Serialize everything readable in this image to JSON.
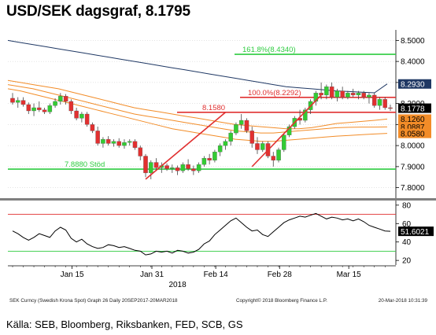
{
  "title": "USD/SEK dagsgraf, 8.1795",
  "source": "Källa: SEB, Bloomberg, Riksbanken, FED, SCB, GS",
  "footer": {
    "left": "SEK Curncy (Swedish Krona Spot) Graph 26  Daily 20SEP2017-20MAR2018",
    "center": "Copyright© 2018 Bloomberg Finance L.P.",
    "right": "20-Mar-2018 10:31:39"
  },
  "chart_data": [
    {
      "type": "candlestick",
      "panel": "price",
      "ylim": [
        7.75,
        8.55
      ],
      "yticks": [
        "7.8000",
        "7.9000",
        "8.0000",
        "8.1000",
        "8.2000",
        "8.3000",
        "8.4000",
        "8.5000"
      ],
      "xticks": [
        "Jan 15",
        "Jan 31",
        "Feb 14",
        "Feb 28",
        "Mar 15"
      ],
      "xaxis_year": "2018",
      "candles": [
        [
          8.225,
          8.25,
          8.195,
          8.205
        ],
        [
          8.205,
          8.23,
          8.18,
          8.215
        ],
        [
          8.215,
          8.23,
          8.185,
          8.195
        ],
        [
          8.195,
          8.205,
          8.15,
          8.165
        ],
        [
          8.165,
          8.2,
          8.14,
          8.18
        ],
        [
          8.18,
          8.21,
          8.16,
          8.17
        ],
        [
          8.17,
          8.18,
          8.15,
          8.16
        ],
        [
          8.16,
          8.2,
          8.15,
          8.19
        ],
        [
          8.19,
          8.225,
          8.18,
          8.21
        ],
        [
          8.21,
          8.25,
          8.195,
          8.235
        ],
        [
          8.235,
          8.245,
          8.195,
          8.21
        ],
        [
          8.21,
          8.22,
          8.15,
          8.165
        ],
        [
          8.165,
          8.18,
          8.12,
          8.13
        ],
        [
          8.13,
          8.16,
          8.11,
          8.15
        ],
        [
          8.15,
          8.16,
          8.09,
          8.1
        ],
        [
          8.1,
          8.11,
          8.06,
          8.07
        ],
        [
          8.07,
          8.09,
          8.0,
          8.01
        ],
        [
          8.01,
          8.04,
          7.99,
          8.03
        ],
        [
          8.03,
          8.045,
          8.0,
          8.01
        ],
        [
          8.01,
          8.03,
          7.995,
          8.02
        ],
        [
          8.02,
          8.035,
          7.99,
          8.0
        ],
        [
          8.0,
          8.03,
          7.985,
          8.015
        ],
        [
          8.015,
          8.03,
          8.0,
          8.02
        ],
        [
          8.02,
          8.03,
          7.98,
          7.99
        ],
        [
          7.99,
          8.0,
          7.93,
          7.95
        ],
        [
          7.95,
          7.96,
          7.85,
          7.87
        ],
        [
          7.87,
          7.93,
          7.84,
          7.92
        ],
        [
          7.92,
          7.94,
          7.88,
          7.895
        ],
        [
          7.895,
          7.92,
          7.87,
          7.905
        ],
        [
          7.905,
          7.915,
          7.88,
          7.89
        ],
        [
          7.89,
          7.91,
          7.87,
          7.895
        ],
        [
          7.895,
          7.905,
          7.86,
          7.88
        ],
        [
          7.88,
          7.92,
          7.87,
          7.91
        ],
        [
          7.91,
          7.935,
          7.88,
          7.89
        ],
        [
          7.89,
          7.905,
          7.86,
          7.88
        ],
        [
          7.88,
          7.92,
          7.87,
          7.91
        ],
        [
          7.91,
          7.95,
          7.9,
          7.94
        ],
        [
          7.94,
          7.96,
          7.91,
          7.93
        ],
        [
          7.93,
          7.98,
          7.92,
          7.97
        ],
        [
          7.97,
          8.01,
          7.95,
          8.0
        ],
        [
          8.0,
          8.03,
          7.98,
          8.02
        ],
        [
          8.02,
          8.07,
          8.0,
          8.06
        ],
        [
          8.06,
          8.11,
          8.05,
          8.1
        ],
        [
          8.1,
          8.15,
          8.08,
          8.12
        ],
        [
          8.12,
          8.13,
          8.06,
          8.07
        ],
        [
          8.07,
          8.09,
          7.99,
          8.01
        ],
        [
          8.01,
          8.04,
          7.96,
          7.98
        ],
        [
          7.98,
          8.02,
          7.97,
          8.01
        ],
        [
          8.01,
          8.02,
          7.94,
          7.95
        ],
        [
          7.95,
          7.97,
          7.9,
          7.93
        ],
        [
          7.93,
          7.99,
          7.92,
          7.98
        ],
        [
          7.98,
          8.06,
          7.97,
          8.05
        ],
        [
          8.05,
          8.1,
          8.04,
          8.09
        ],
        [
          8.09,
          8.14,
          8.08,
          8.13
        ],
        [
          8.13,
          8.17,
          8.1,
          8.12
        ],
        [
          8.12,
          8.18,
          8.11,
          8.17
        ],
        [
          8.17,
          8.22,
          8.15,
          8.21
        ],
        [
          8.21,
          8.26,
          8.19,
          8.25
        ],
        [
          8.25,
          8.3,
          8.22,
          8.24
        ],
        [
          8.24,
          8.29,
          8.22,
          8.28
        ],
        [
          8.28,
          8.3,
          8.22,
          8.23
        ],
        [
          8.23,
          8.27,
          8.21,
          8.26
        ],
        [
          8.26,
          8.28,
          8.22,
          8.23
        ],
        [
          8.23,
          8.26,
          8.22,
          8.25
        ],
        [
          8.25,
          8.27,
          8.23,
          8.24
        ],
        [
          8.24,
          8.26,
          8.22,
          8.25
        ],
        [
          8.25,
          8.26,
          8.22,
          8.23
        ],
        [
          8.23,
          8.25,
          8.2,
          8.24
        ],
        [
          8.24,
          8.25,
          8.18,
          8.19
        ],
        [
          8.19,
          8.23,
          8.17,
          8.22
        ],
        [
          8.22,
          8.23,
          8.17,
          8.18
        ],
        [
          8.18,
          8.195,
          8.165,
          8.1778
        ]
      ],
      "moving_averages": [
        {
          "color": "#1f3864",
          "values": [
            8.5,
            8.49,
            8.48,
            8.47,
            8.46,
            8.45,
            8.44,
            8.43,
            8.42,
            8.41,
            8.4,
            8.39,
            8.38,
            8.37,
            8.36,
            8.35,
            8.34,
            8.33,
            8.32,
            8.31,
            8.3,
            8.29,
            8.28,
            8.275,
            8.27,
            8.265,
            8.26,
            8.257,
            8.254,
            8.251,
            8.293
          ]
        },
        {
          "color": "#f28c28",
          "values": [
            8.31,
            8.3,
            8.29,
            8.28,
            8.27,
            8.255,
            8.24,
            8.225,
            8.21,
            8.195,
            8.18,
            8.17,
            8.16,
            8.15,
            8.14,
            8.13,
            8.12,
            8.11,
            8.1,
            8.095,
            8.09,
            8.085,
            8.08,
            8.08,
            8.085,
            8.095,
            8.105,
            8.11,
            8.115,
            8.12,
            8.126
          ]
        },
        {
          "color": "#f28c28",
          "values": [
            8.29,
            8.28,
            8.27,
            8.255,
            8.24,
            8.225,
            8.21,
            8.195,
            8.18,
            8.165,
            8.15,
            8.14,
            8.13,
            8.12,
            8.11,
            8.1,
            8.09,
            8.08,
            8.07,
            8.065,
            8.06,
            8.06,
            8.065,
            8.07,
            8.075,
            8.08,
            8.085,
            8.087,
            8.088,
            8.088,
            8.0887
          ]
        },
        {
          "color": "#f28c28",
          "values": [
            8.27,
            8.26,
            8.245,
            8.23,
            8.215,
            8.2,
            8.185,
            8.17,
            8.155,
            8.14,
            8.125,
            8.11,
            8.095,
            8.08,
            8.07,
            8.06,
            8.05,
            8.04,
            8.03,
            8.025,
            8.02,
            8.02,
            8.025,
            8.03,
            8.035,
            8.04,
            8.045,
            8.048,
            8.052,
            8.055,
            8.058
          ]
        }
      ],
      "horizontal_lines": [
        {
          "value": 8.434,
          "color": "#2ecc40",
          "label": "161.8%(8.4340)"
        },
        {
          "value": 8.2292,
          "color": "#e03030",
          "label": "100.0%(8.2292)"
        },
        {
          "value": 8.158,
          "color": "#e03030",
          "label": "8.1580"
        },
        {
          "value": 7.888,
          "color": "#2ecc40",
          "label": "7.8880 Stöd"
        }
      ],
      "trend_lines": [
        {
          "from": [
            25,
            7.84
          ],
          "to": [
            40,
            8.158
          ],
          "color": "#e03030"
        },
        {
          "from": [
            45,
            7.9
          ],
          "to": [
            58,
            8.24
          ],
          "color": "#e03030"
        }
      ],
      "last_values": [
        {
          "value": 8.293,
          "label": "8.2930",
          "bg": "#1f3864",
          "fg": "#ffffff"
        },
        {
          "value": 8.1778,
          "label": "8.1778",
          "bg": "#000000",
          "fg": "#ffffff"
        },
        {
          "value": 8.126,
          "label": "8.1260",
          "bg": "#f28c28",
          "fg": "#000000"
        },
        {
          "value": 8.0887,
          "label": "8.0887",
          "bg": "#f28c28",
          "fg": "#000000"
        },
        {
          "value": 8.058,
          "label": "8.0580",
          "bg": "#f28c28",
          "fg": "#000000"
        }
      ]
    },
    {
      "type": "line",
      "panel": "rsi",
      "ylim": [
        15,
        85
      ],
      "yticks": [
        "20",
        "40",
        "60",
        "80"
      ],
      "levels": [
        {
          "value": 70,
          "color": "#e03030"
        },
        {
          "value": 30,
          "color": "#2ecc40"
        }
      ],
      "series": [
        {
          "color": "#000000",
          "last_label": "51.6021",
          "values": [
            52,
            49,
            45,
            42,
            45,
            49,
            47,
            45,
            52,
            56,
            53,
            44,
            40,
            43,
            38,
            35,
            33,
            34,
            37,
            36,
            34,
            35,
            33,
            31,
            30,
            26,
            27,
            30,
            29,
            30,
            28,
            31,
            30,
            28,
            29,
            32,
            38,
            41,
            48,
            53,
            58,
            63,
            66,
            61,
            56,
            52,
            53,
            48,
            46,
            51,
            56,
            61,
            64,
            66,
            68,
            67,
            69,
            71,
            68,
            65,
            67,
            66,
            64,
            65,
            63,
            65,
            62,
            58,
            56,
            54,
            52,
            51.6
          ]
        }
      ]
    }
  ]
}
